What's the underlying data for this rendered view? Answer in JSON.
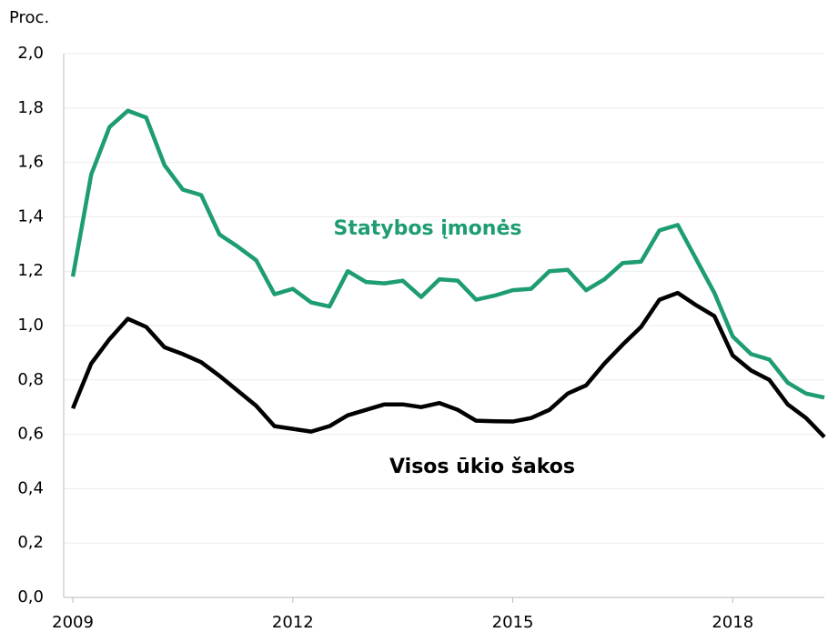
{
  "chart_data": {
    "type": "line",
    "y_label": "Proc.",
    "x": [
      2009,
      2009.25,
      2009.5,
      2009.75,
      2010,
      2010.25,
      2010.5,
      2010.75,
      2011,
      2011.25,
      2011.5,
      2011.75,
      2012,
      2012.25,
      2012.5,
      2012.75,
      2013,
      2013.25,
      2013.5,
      2013.75,
      2014,
      2014.25,
      2014.5,
      2014.75,
      2015,
      2015.25,
      2015.5,
      2015.75,
      2016,
      2016.25,
      2016.5,
      2016.75,
      2017,
      2017.25,
      2017.5,
      2017.75,
      2018,
      2018.25,
      2018.5,
      2018.75,
      2019,
      2019.25
    ],
    "series": [
      {
        "name": "Statybos įmonės",
        "color": "#1e9c73",
        "values": [
          1.18,
          1.555,
          1.73,
          1.79,
          1.765,
          1.59,
          1.5,
          1.48,
          1.335,
          1.29,
          1.24,
          1.115,
          1.135,
          1.085,
          1.07,
          1.2,
          1.16,
          1.155,
          1.165,
          1.105,
          1.17,
          1.165,
          1.095,
          1.11,
          1.13,
          1.135,
          1.2,
          1.205,
          1.13,
          1.17,
          1.23,
          1.235,
          1.35,
          1.37,
          1.245,
          1.12,
          0.96,
          0.895,
          0.875,
          0.79,
          0.75,
          0.735
        ]
      },
      {
        "name": "Visos ūkio šakos",
        "color": "#000000",
        "values": [
          0.695,
          0.86,
          0.95,
          1.025,
          0.995,
          0.92,
          0.895,
          0.865,
          0.815,
          0.76,
          0.705,
          0.63,
          0.62,
          0.61,
          0.63,
          0.67,
          0.69,
          0.71,
          0.71,
          0.7,
          0.715,
          0.69,
          0.65,
          0.648,
          0.647,
          0.66,
          0.69,
          0.75,
          0.78,
          0.86,
          0.93,
          0.995,
          1.095,
          1.12,
          1.075,
          1.035,
          0.89,
          0.835,
          0.8,
          0.71,
          0.66,
          0.59
        ]
      }
    ],
    "xlim": [
      2008.875,
      2019.25
    ],
    "xticks": [
      2009,
      2012,
      2015,
      2018
    ],
    "ylim": [
      0,
      2
    ],
    "yticks": [
      {
        "value": 0,
        "label": "0,0"
      },
      {
        "value": 0.2,
        "label": "0,2"
      },
      {
        "value": 0.4,
        "label": "0,4"
      },
      {
        "value": 0.6,
        "label": "0,6"
      },
      {
        "value": 0.8,
        "label": "0,8"
      },
      {
        "value": 1,
        "label": "1,0"
      },
      {
        "value": 1.2,
        "label": "1,2"
      },
      {
        "value": 1.4,
        "label": "1,4"
      },
      {
        "value": 1.6,
        "label": "1,6"
      },
      {
        "value": 1.8,
        "label": "1,8"
      },
      {
        "value": 2,
        "label": "2,0"
      }
    ],
    "grid": true
  }
}
